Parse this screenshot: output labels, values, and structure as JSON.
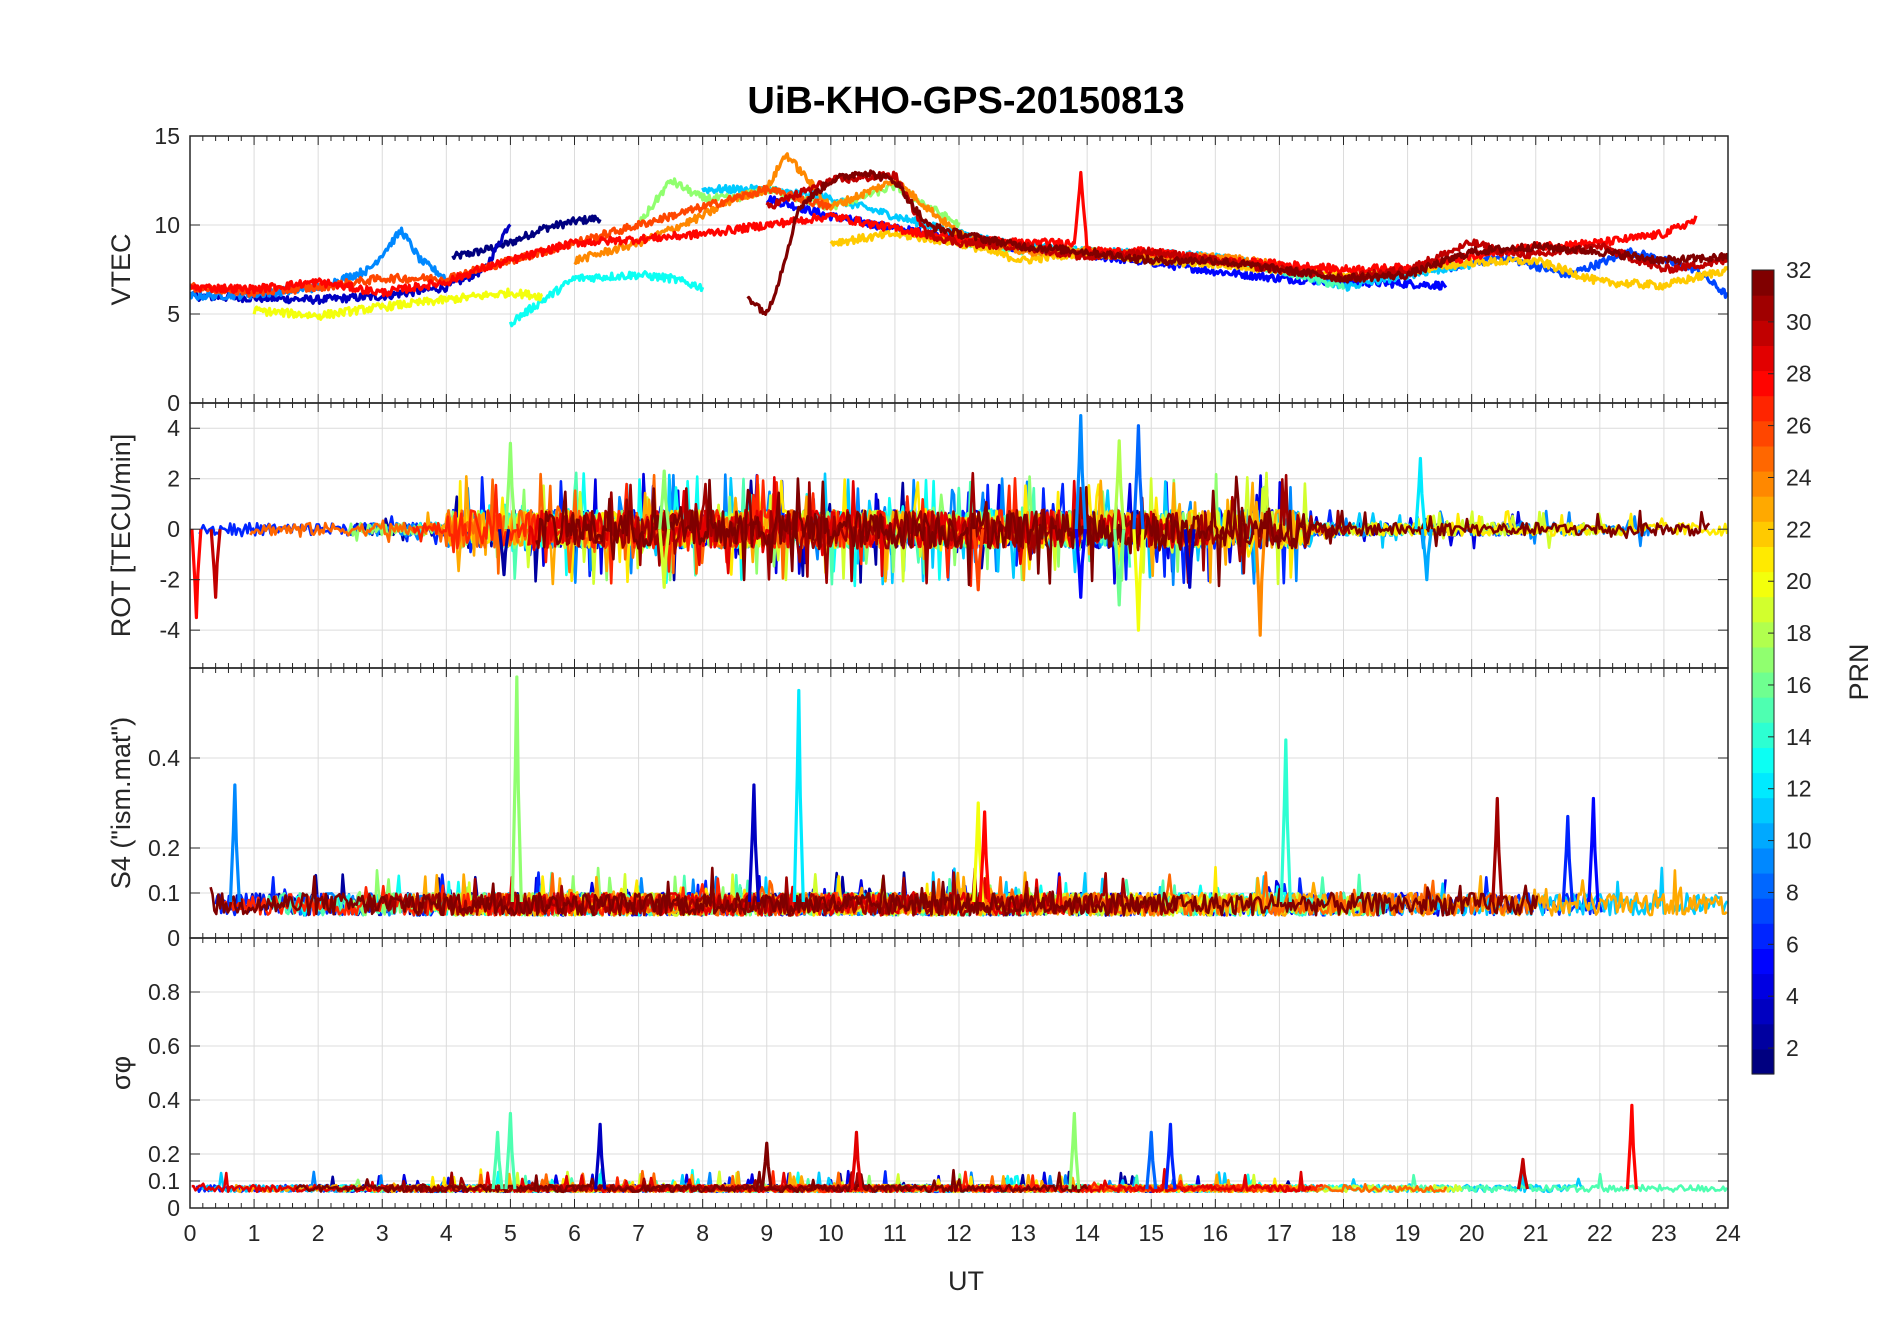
{
  "chart_data": {
    "type": "line",
    "title": "UiB-KHO-GPS-20150813",
    "xlabel": "UT",
    "xlim": [
      0,
      24
    ],
    "x_ticks": [
      "0",
      "1",
      "2",
      "3",
      "4",
      "5",
      "6",
      "7",
      "8",
      "9",
      "10",
      "11",
      "12",
      "13",
      "14",
      "15",
      "16",
      "17",
      "18",
      "19",
      "20",
      "21",
      "22",
      "23",
      "24"
    ],
    "grid": true,
    "colormap": "jet",
    "colorbar": {
      "label": "PRN",
      "range": [
        1,
        32
      ],
      "ticks": [
        "2",
        "4",
        "6",
        "8",
        "10",
        "12",
        "14",
        "16",
        "18",
        "20",
        "22",
        "24",
        "26",
        "28",
        "30",
        "32"
      ],
      "position": "right"
    },
    "panels": [
      {
        "ylabel": "VTEC",
        "ylim": [
          0,
          15
        ],
        "y_ticks": [
          "0",
          "5",
          "10",
          "15"
        ],
        "series": [
          {
            "prn": 1,
            "x": [
              4.1,
              4.5,
              5.0,
              5.5,
              6.0,
              6.4
            ],
            "y": [
              8.2,
              8.5,
              9.0,
              9.8,
              10.2,
              10.4
            ]
          },
          {
            "prn": 3,
            "x": [
              0.0,
              1.0,
              2.0,
              3.0,
              4.0,
              4.6,
              5.0
            ],
            "y": [
              6.0,
              5.9,
              5.8,
              6.0,
              6.5,
              7.5,
              10.2
            ]
          },
          {
            "prn": 5,
            "x": [
              9.0,
              10.0,
              11.0,
              12.0,
              13.0,
              14.0,
              15.0,
              16.0,
              17.0,
              18.0,
              19.0,
              19.6
            ],
            "y": [
              11.5,
              10.5,
              9.8,
              9.3,
              8.6,
              8.3,
              7.9,
              7.4,
              7.0,
              6.8,
              6.7,
              6.6
            ]
          },
          {
            "prn": 7,
            "x": [
              19.5,
              20.5,
              21.5,
              22.5,
              23.5,
              24.0
            ],
            "y": [
              7.5,
              8.2,
              7.2,
              8.5,
              7.5,
              6.0
            ]
          },
          {
            "prn": 9,
            "x": [
              0.0,
              1.0,
              2.0,
              2.8,
              3.3,
              3.6,
              4.0
            ],
            "y": [
              6.0,
              6.1,
              6.5,
              7.5,
              9.7,
              8.0,
              7.0
            ]
          },
          {
            "prn": 11,
            "x": [
              8.0,
              9.0,
              10.0,
              11.0,
              12.0,
              13.0,
              14.0,
              15.0,
              16.0,
              17.0,
              18.0,
              19.0,
              20.0
            ],
            "y": [
              12.0,
              12.0,
              11.5,
              10.5,
              9.5,
              8.8,
              8.5,
              8.4,
              8.2,
              7.5,
              6.5,
              7.2,
              7.8
            ]
          },
          {
            "prn": 13,
            "x": [
              5.0,
              6.0,
              7.0,
              7.5,
              8.0
            ],
            "y": [
              4.5,
              7.0,
              7.2,
              7.0,
              6.5
            ]
          },
          {
            "prn": 15,
            "x": [
              12.0,
              13.0,
              14.0,
              15.0,
              16.0,
              17.0,
              18.0
            ],
            "y": [
              9.0,
              8.6,
              8.5,
              8.2,
              8.0,
              7.5,
              6.5
            ]
          },
          {
            "prn": 17,
            "x": [
              7.0,
              7.5,
              8.0,
              8.5,
              9.0,
              10.0,
              11.0,
              12.0
            ],
            "y": [
              10.0,
              12.5,
              11.5,
              11.5,
              12.0,
              11.0,
              12.2,
              10.0
            ]
          },
          {
            "prn": 20,
            "x": [
              1.0,
              2.0,
              3.0,
              4.0,
              5.0,
              5.5
            ],
            "y": [
              5.2,
              4.9,
              5.4,
              5.8,
              6.2,
              6.0
            ]
          },
          {
            "prn": 22,
            "x": [
              10.0,
              11.0,
              12.0,
              13.0,
              14.0,
              15.0,
              16.0,
              17.0,
              18.0,
              19.0,
              20.0,
              21.0,
              22.0,
              23.0,
              24.0
            ],
            "y": [
              9.0,
              9.5,
              9.0,
              8.0,
              8.5,
              8.0,
              7.8,
              7.5,
              7.2,
              7.4,
              7.9,
              8.0,
              6.8,
              6.6,
              7.5
            ]
          },
          {
            "prn": 24,
            "x": [
              6.0,
              7.0,
              8.0,
              8.5,
              9.0,
              9.3,
              10.0,
              11.0,
              12.0,
              13.0,
              14.0,
              15.0,
              16.0,
              17.0
            ],
            "y": [
              8.0,
              9.0,
              10.5,
              11.5,
              12.0,
              14.0,
              11.0,
              12.5,
              9.5,
              8.5,
              8.6,
              8.2,
              8.2,
              7.8
            ]
          },
          {
            "prn": 26,
            "x": [
              0.0,
              1.0,
              2.0,
              3.0,
              4.0,
              5.0,
              6.0,
              7.0,
              8.0,
              8.5,
              9.0,
              10.0
            ],
            "y": [
              6.5,
              6.2,
              6.5,
              7.0,
              7.0,
              8.0,
              9.0,
              10.0,
              11.0,
              11.5,
              12.0,
              11.0
            ]
          },
          {
            "prn": 28,
            "x": [
              0.0,
              1.0,
              2.0,
              3.0,
              4.0,
              4.5,
              5.0,
              6.0,
              7.0,
              8.0,
              9.0,
              10.0,
              11.0,
              12.0,
              13.0,
              13.8,
              13.9,
              14.0,
              15.0,
              16.0,
              17.0,
              18.0,
              19.0,
              20.0,
              21.0,
              22.0,
              23.0,
              23.5
            ],
            "y": [
              6.5,
              6.4,
              6.8,
              6.2,
              6.8,
              7.5,
              8.0,
              9.0,
              9.2,
              9.5,
              10.0,
              10.5,
              9.8,
              9.2,
              9.0,
              9.0,
              13.0,
              8.5,
              8.5,
              8.0,
              7.8,
              7.5,
              7.6,
              8.2,
              8.8,
              9.0,
              9.5,
              10.3
            ]
          },
          {
            "prn": 30,
            "x": [
              9.0,
              10.0,
              11.0,
              11.5,
              12.0,
              13.0,
              14.0,
              15.0,
              16.0,
              17.0,
              18.0,
              19.0,
              20.0,
              20.5,
              21.0,
              22.0,
              23.0,
              24.0
            ],
            "y": [
              11.0,
              12.5,
              12.8,
              9.5,
              9.0,
              8.8,
              8.2,
              8.5,
              8.0,
              7.5,
              7.0,
              7.5,
              9.0,
              8.5,
              8.3,
              8.8,
              7.5,
              8.0
            ]
          },
          {
            "prn": 32,
            "x": [
              8.7,
              9.0,
              9.2,
              9.5,
              10.0,
              10.5,
              11.0,
              11.5,
              12.0,
              13.0,
              14.0,
              15.0,
              16.0,
              17.0,
              18.0,
              19.0,
              20.0,
              21.0,
              22.0,
              23.0,
              24.0
            ],
            "y": [
              6.0,
              5.0,
              7.0,
              11.0,
              12.5,
              13.0,
              12.5,
              10.0,
              9.5,
              8.8,
              8.5,
              8.0,
              8.0,
              7.5,
              7.0,
              7.2,
              8.5,
              8.8,
              8.5,
              8.0,
              8.2
            ]
          }
        ]
      },
      {
        "ylabel": "ROT [TECU/min]",
        "ylim": [
          -5.5,
          5
        ],
        "y_ticks": [
          "-4",
          "-2",
          "0",
          "2",
          "4"
        ],
        "spikes": [
          {
            "prn": 28,
            "x": 0.1,
            "y": -3.5
          },
          {
            "prn": 30,
            "x": 0.4,
            "y": -2.7
          },
          {
            "prn": 17,
            "x": 5.0,
            "y": 3.4
          },
          {
            "prn": 2,
            "x": 4.9,
            "y": -1.8
          },
          {
            "prn": 17,
            "x": 7.4,
            "y": 2.3
          },
          {
            "prn": 19,
            "x": 7.4,
            "y": -2.3
          },
          {
            "prn": 26,
            "x": 12.3,
            "y": -2.4
          },
          {
            "prn": 9,
            "x": 13.9,
            "y": 4.5
          },
          {
            "prn": 5,
            "x": 13.9,
            "y": -2.7
          },
          {
            "prn": 8,
            "x": 14.8,
            "y": 4.1
          },
          {
            "prn": 18,
            "x": 14.5,
            "y": 3.5
          },
          {
            "prn": 20,
            "x": 14.8,
            "y": -4.0
          },
          {
            "prn": 16,
            "x": 14.5,
            "y": -3.0
          },
          {
            "prn": 3,
            "x": 15.6,
            "y": -2.3
          },
          {
            "prn": 24,
            "x": 16.7,
            "y": -4.2
          },
          {
            "prn": 12,
            "x": 19.2,
            "y": 2.8
          },
          {
            "prn": 10,
            "x": 19.3,
            "y": -2.0
          }
        ]
      },
      {
        "ylabel": "S4 (\"ism.mat\")",
        "ylim": [
          0,
          0.6
        ],
        "y_ticks": [
          "0",
          "0.1",
          "0.2",
          "0.4"
        ],
        "spikes": [
          {
            "prn": 9,
            "x": 0.7,
            "y": 0.34
          },
          {
            "prn": 17,
            "x": 5.1,
            "y": 0.58
          },
          {
            "prn": 3,
            "x": 8.8,
            "y": 0.34
          },
          {
            "prn": 12,
            "x": 9.5,
            "y": 0.55
          },
          {
            "prn": 20,
            "x": 12.3,
            "y": 0.3
          },
          {
            "prn": 28,
            "x": 12.4,
            "y": 0.28
          },
          {
            "prn": 14,
            "x": 17.1,
            "y": 0.44
          },
          {
            "prn": 31,
            "x": 20.4,
            "y": 0.31
          },
          {
            "prn": 6,
            "x": 21.5,
            "y": 0.27
          },
          {
            "prn": 5,
            "x": 21.9,
            "y": 0.31
          }
        ]
      },
      {
        "ylabel": "σφ",
        "ylim": [
          0,
          1
        ],
        "y_ticks": [
          "0",
          "0.1",
          "0.2",
          "0.4",
          "0.6",
          "0.8"
        ],
        "spikes": [
          {
            "prn": 15,
            "x": 4.8,
            "y": 0.28
          },
          {
            "prn": 15,
            "x": 5.0,
            "y": 0.35
          },
          {
            "prn": 3,
            "x": 6.4,
            "y": 0.31
          },
          {
            "prn": 32,
            "x": 9.0,
            "y": 0.24
          },
          {
            "prn": 29,
            "x": 10.4,
            "y": 0.28
          },
          {
            "prn": 17,
            "x": 13.8,
            "y": 0.35
          },
          {
            "prn": 8,
            "x": 15.0,
            "y": 0.28
          },
          {
            "prn": 6,
            "x": 15.3,
            "y": 0.31
          },
          {
            "prn": 30,
            "x": 20.8,
            "y": 0.18
          },
          {
            "prn": 28,
            "x": 22.5,
            "y": 0.38
          }
        ]
      }
    ]
  }
}
